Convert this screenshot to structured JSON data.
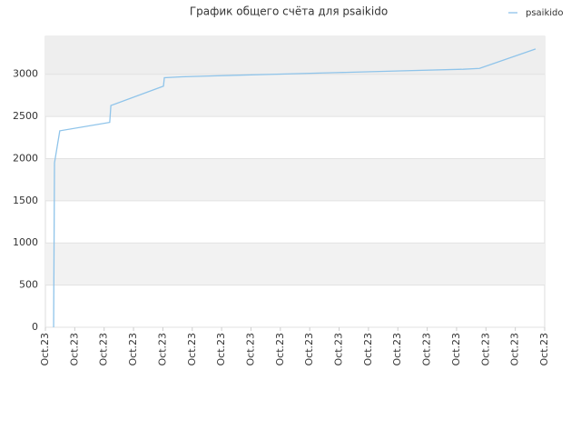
{
  "chart_data": {
    "type": "line",
    "title": "График общего счёта для psaikido",
    "x": [
      0.28,
      0.31,
      0.49,
      2.19,
      2.23,
      4.02,
      4.05,
      4.64,
      5.56,
      7.73,
      9.89,
      12.06,
      14.22,
      14.78,
      16.69
    ],
    "series": [
      {
        "name": "psaikido",
        "color": "#8fc4ea",
        "values": [
          0,
          1950,
          2330,
          2430,
          2630,
          2860,
          2960,
          2970,
          2980,
          3000,
          3020,
          3040,
          3060,
          3070,
          3300
        ]
      }
    ],
    "xlim": [
      0,
      17
    ],
    "xticks": [
      {
        "value": 0,
        "label": "Oct.23"
      },
      {
        "value": 1,
        "label": "Oct.23"
      },
      {
        "value": 2,
        "label": "Oct.23"
      },
      {
        "value": 3,
        "label": "Oct.23"
      },
      {
        "value": 4,
        "label": "Oct.23"
      },
      {
        "value": 5,
        "label": "Oct.23"
      },
      {
        "value": 6,
        "label": "Oct.23"
      },
      {
        "value": 7,
        "label": "Oct.23"
      },
      {
        "value": 8,
        "label": "Oct.23"
      },
      {
        "value": 9,
        "label": "Oct.23"
      },
      {
        "value": 10,
        "label": "Oct.23"
      },
      {
        "value": 11,
        "label": "Oct.23"
      },
      {
        "value": 12,
        "label": "Oct.23"
      },
      {
        "value": 13,
        "label": "Oct.23"
      },
      {
        "value": 14,
        "label": "Oct.23"
      },
      {
        "value": 15,
        "label": "Oct.23"
      },
      {
        "value": 16,
        "label": "Oct.23"
      },
      {
        "value": 17,
        "label": "Oct.23"
      }
    ],
    "ylim": [
      0,
      3450
    ],
    "yticks": [
      0,
      500,
      1000,
      1500,
      2000,
      2500,
      3000
    ],
    "grid": true,
    "legend": "top-right"
  }
}
